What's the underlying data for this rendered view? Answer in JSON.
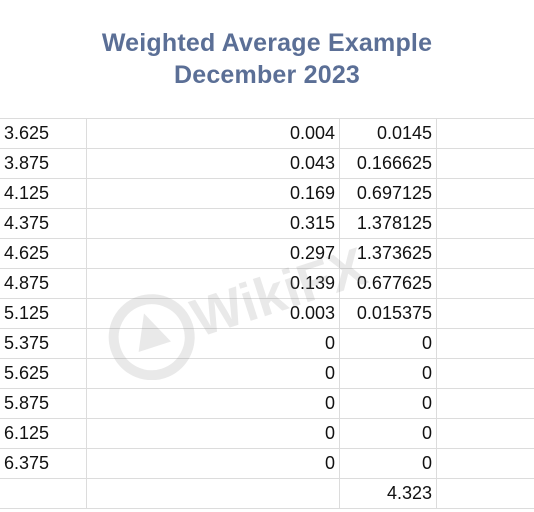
{
  "title": {
    "line1": "Weighted Average Example",
    "line2": "December 2023"
  },
  "rows": [
    {
      "a": "3.625",
      "b": "0.004",
      "c": "0.0145"
    },
    {
      "a": "3.875",
      "b": "0.043",
      "c": "0.166625"
    },
    {
      "a": "4.125",
      "b": "0.169",
      "c": "0.697125"
    },
    {
      "a": "4.375",
      "b": "0.315",
      "c": "1.378125"
    },
    {
      "a": "4.625",
      "b": "0.297",
      "c": "1.373625"
    },
    {
      "a": "4.875",
      "b": "0.139",
      "c": "0.677625"
    },
    {
      "a": "5.125",
      "b": "0.003",
      "c": "0.015375"
    },
    {
      "a": "5.375",
      "b": "0",
      "c": "0"
    },
    {
      "a": "5.625",
      "b": "0",
      "c": "0"
    },
    {
      "a": "5.875",
      "b": "0",
      "c": "0"
    },
    {
      "a": "6.125",
      "b": "0",
      "c": "0"
    },
    {
      "a": "6.375",
      "b": "0",
      "c": "0"
    }
  ],
  "total": {
    "c": "4.323"
  },
  "watermark": {
    "text": "WikiFX",
    "icon": "wikifx-logo-icon"
  }
}
